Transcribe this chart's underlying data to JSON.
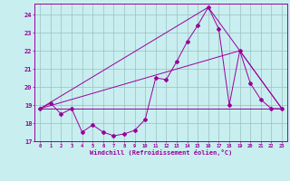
{
  "xlabel": "Windchill (Refroidissement éolien,°C)",
  "background_color": "#c8eef0",
  "grid_color": "#9bbfc0",
  "line_color": "#990099",
  "xlim": [
    -0.5,
    23.5
  ],
  "ylim": [
    17,
    24.6
  ],
  "yticks": [
    17,
    18,
    19,
    20,
    21,
    22,
    23,
    24
  ],
  "xticks": [
    0,
    1,
    2,
    3,
    4,
    5,
    6,
    7,
    8,
    9,
    10,
    11,
    12,
    13,
    14,
    15,
    16,
    17,
    18,
    19,
    20,
    21,
    22,
    23
  ],
  "series1_x": [
    0,
    1,
    2,
    3,
    4,
    5,
    6,
    7,
    8,
    9,
    10,
    11,
    12,
    13,
    14,
    15,
    16,
    17,
    18,
    19,
    20,
    21,
    22,
    23
  ],
  "series1_y": [
    18.8,
    19.1,
    18.5,
    18.8,
    17.5,
    17.9,
    17.5,
    17.3,
    17.4,
    17.6,
    18.2,
    20.5,
    20.4,
    21.4,
    22.5,
    23.4,
    24.4,
    23.2,
    19.0,
    22.0,
    20.2,
    19.3,
    18.8,
    18.8
  ],
  "line2_x": [
    0,
    23
  ],
  "line2_y": [
    18.8,
    18.8
  ],
  "line3_x": [
    0,
    16,
    23
  ],
  "line3_y": [
    18.8,
    24.4,
    18.8
  ],
  "line4_x": [
    0,
    19,
    23
  ],
  "line4_y": [
    18.8,
    22.0,
    18.8
  ]
}
